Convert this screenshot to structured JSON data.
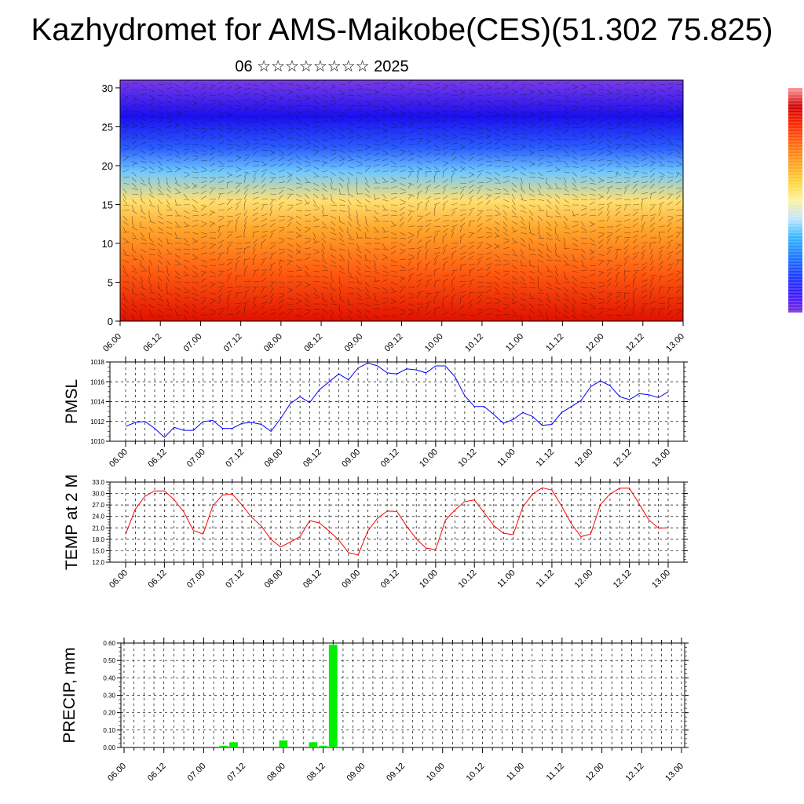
{
  "title": "Kazhydromet for AMS-Maikobe(CES)(51.302 75.825)",
  "subtitle": "06 ☆☆☆☆☆☆☆☆ 2025",
  "time_ticks": [
    "06.00",
    "06.12",
    "07.00",
    "07.12",
    "08.00",
    "08.12",
    "09.00",
    "09.12",
    "10.00",
    "10.12",
    "11.00",
    "11.12",
    "12.00",
    "12.12",
    "13.00"
  ],
  "chart_data": [
    {
      "type": "heatmap",
      "id": "cross_section",
      "x_ticks": [
        "06.00",
        "06.12",
        "07.00",
        "07.12",
        "08.00",
        "08.12",
        "09.00",
        "09.12",
        "10.00",
        "10.12",
        "11.00",
        "11.12",
        "12.00",
        "12.12",
        "13.00"
      ],
      "ylim": [
        0,
        31
      ],
      "y_ticks": [
        0,
        5,
        10,
        15,
        20,
        25,
        30
      ],
      "colorbar_colors": [
        "#7b2be0",
        "#3a1cff",
        "#1a40ff",
        "#1e7bff",
        "#33b6ff",
        "#bfe6ff",
        "#fff2a0",
        "#ffd23a",
        "#ffa020",
        "#ff6a10",
        "#ff2a00",
        "#d00000",
        "#ff9999"
      ],
      "field_colors": {
        "surface": "#e01000",
        "lower": "#ff5a10",
        "mid_low": "#ffa52a",
        "mid": "#ffe070",
        "transition": "#6fc8ff",
        "upper": "#2a5cff",
        "jet": "#1a10ee",
        "top": "#7a3ae8"
      },
      "overlay": "wind vectors"
    },
    {
      "type": "line",
      "id": "pmsl",
      "ylabel": "PMSL",
      "ylim": [
        1010,
        1018
      ],
      "y_ticks": [
        1010,
        1012,
        1014,
        1016,
        1018
      ],
      "color": "#0000ff",
      "x": [
        "06.00",
        "06.03",
        "06.06",
        "06.09",
        "06.12",
        "06.15",
        "06.18",
        "06.21",
        "07.00",
        "07.03",
        "07.06",
        "07.09",
        "07.12",
        "07.15",
        "07.18",
        "07.21",
        "08.00",
        "08.03",
        "08.06",
        "08.09",
        "08.12",
        "08.15",
        "08.18",
        "08.21",
        "09.00",
        "09.03",
        "09.06",
        "09.09",
        "09.12",
        "09.15",
        "09.18",
        "09.21",
        "10.00",
        "10.03",
        "10.06",
        "10.09",
        "10.12",
        "10.15",
        "10.18",
        "10.21",
        "11.00",
        "11.03",
        "11.06",
        "11.09",
        "11.12",
        "11.15",
        "11.18",
        "11.21",
        "12.00",
        "12.03",
        "12.06",
        "12.09",
        "12.12",
        "12.15",
        "12.18",
        "12.21",
        "13.00"
      ],
      "values": [
        1011.5,
        1011.9,
        1012.0,
        1011.3,
        1010.4,
        1011.4,
        1011.1,
        1011.1,
        1012.0,
        1012.1,
        1011.3,
        1011.3,
        1011.8,
        1011.9,
        1011.7,
        1011.0,
        1012.3,
        1013.8,
        1014.5,
        1013.9,
        1015.2,
        1016.0,
        1016.8,
        1016.2,
        1017.4,
        1017.9,
        1017.6,
        1016.9,
        1016.8,
        1017.3,
        1017.2,
        1016.9,
        1017.6,
        1017.6,
        1016.5,
        1014.6,
        1013.5,
        1013.5,
        1012.7,
        1011.8,
        1012.2,
        1012.9,
        1012.5,
        1011.6,
        1011.7,
        1012.9,
        1013.5,
        1014.1,
        1015.5,
        1016.1,
        1015.6,
        1014.5,
        1014.2,
        1014.8,
        1014.7,
        1014.4,
        1015.0
      ]
    },
    {
      "type": "line",
      "id": "temp",
      "ylabel": "TEMP at 2 M",
      "ylim": [
        12,
        33
      ],
      "y_ticks": [
        "12.0",
        "15.0",
        "18.0",
        "21.0",
        "24.0",
        "27.0",
        "30.0",
        "33.0"
      ],
      "color": "#ff0000",
      "x": [
        "06.00",
        "06.03",
        "06.06",
        "06.09",
        "06.12",
        "06.15",
        "06.18",
        "06.21",
        "07.00",
        "07.03",
        "07.06",
        "07.09",
        "07.12",
        "07.15",
        "07.18",
        "07.21",
        "08.00",
        "08.03",
        "08.06",
        "08.09",
        "08.12",
        "08.15",
        "08.18",
        "08.21",
        "09.00",
        "09.03",
        "09.06",
        "09.09",
        "09.12",
        "09.15",
        "09.18",
        "09.21",
        "10.00",
        "10.03",
        "10.06",
        "10.09",
        "10.12",
        "10.15",
        "10.18",
        "10.21",
        "11.00",
        "11.03",
        "11.06",
        "11.09",
        "11.12",
        "11.15",
        "11.18",
        "11.21",
        "12.00",
        "12.03",
        "12.06",
        "12.09",
        "12.12",
        "12.15",
        "12.18",
        "12.21",
        "13.00"
      ],
      "values": [
        19.3,
        25.9,
        29.3,
        30.7,
        30.7,
        28.4,
        25.2,
        20.3,
        19.4,
        26.8,
        29.6,
        29.9,
        27.0,
        23.8,
        21.5,
        18.0,
        16.0,
        17.3,
        18.7,
        22.9,
        22.3,
        20.2,
        17.8,
        14.5,
        13.9,
        20.2,
        23.5,
        25.4,
        25.3,
        21.5,
        18.1,
        15.7,
        15.3,
        23.0,
        25.7,
        27.9,
        28.3,
        25.0,
        21.6,
        19.6,
        19.2,
        26.5,
        29.9,
        31.5,
        30.9,
        26.7,
        22.1,
        18.7,
        19.4,
        27.1,
        29.9,
        31.4,
        31.4,
        27.3,
        23.1,
        20.9,
        21.0
      ]
    },
    {
      "type": "bar",
      "id": "precip",
      "ylabel": "PRECIP, mm",
      "ylim": [
        0,
        0.6
      ],
      "y_ticks": [
        "0.00",
        "0.10",
        "0.20",
        "0.30",
        "0.40",
        "0.50",
        "0.60"
      ],
      "color": "#00ee00",
      "x": [
        "07.06",
        "07.09",
        "08.00",
        "08.09",
        "08.12",
        "08.15"
      ],
      "values": [
        0.01,
        0.03,
        0.04,
        0.03,
        0.01,
        0.59
      ]
    }
  ]
}
